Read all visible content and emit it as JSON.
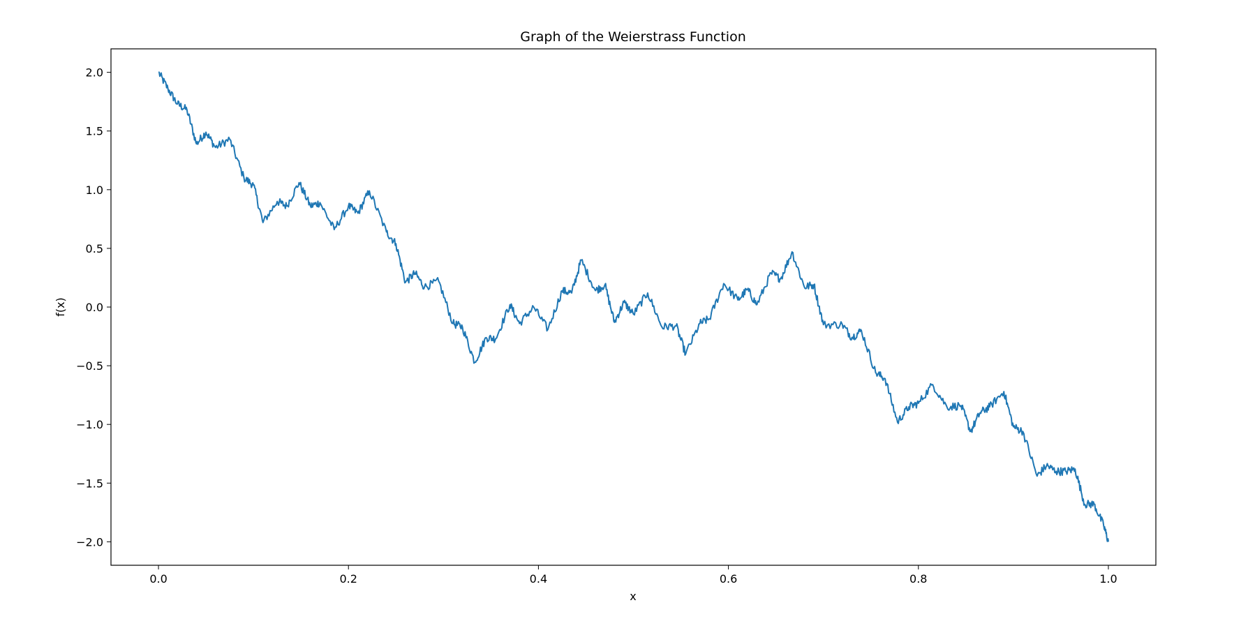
{
  "chart_data": {
    "type": "line",
    "title": "Graph of the Weierstrass Function",
    "xlabel": "x",
    "ylabel": "f(x)",
    "xlim": [
      -0.05,
      1.05
    ],
    "ylim": [
      -2.2,
      2.2
    ],
    "x_ticks": [
      0.0,
      0.2,
      0.4,
      0.6,
      0.8,
      1.0
    ],
    "x_tick_labels": [
      "0.0",
      "0.2",
      "0.4",
      "0.6",
      "0.8",
      "1.0"
    ],
    "y_ticks": [
      2.0,
      1.5,
      1.0,
      0.5,
      0.0,
      -0.5,
      -1.0,
      -1.5,
      -2.0
    ],
    "y_tick_labels": [
      "2.0",
      "1.5",
      "1.0",
      "0.5",
      "0.0",
      "−0.5",
      "−1.0",
      "−1.5",
      "−2.0"
    ],
    "grid": false,
    "legend": "none",
    "series": [
      {
        "color": "#1f77b4",
        "points": [
          [
            0.0,
            2.0
          ],
          [
            0.01,
            1.86
          ],
          [
            0.02,
            1.73
          ],
          [
            0.03,
            1.68
          ],
          [
            0.04,
            1.39
          ],
          [
            0.05,
            1.49
          ],
          [
            0.06,
            1.36
          ],
          [
            0.075,
            1.43
          ],
          [
            0.09,
            1.1
          ],
          [
            0.1,
            1.04
          ],
          [
            0.11,
            0.72
          ],
          [
            0.125,
            0.9
          ],
          [
            0.135,
            0.86
          ],
          [
            0.148,
            1.06
          ],
          [
            0.16,
            0.86
          ],
          [
            0.17,
            0.89
          ],
          [
            0.185,
            0.66
          ],
          [
            0.2,
            0.86
          ],
          [
            0.21,
            0.8
          ],
          [
            0.222,
            0.99
          ],
          [
            0.24,
            0.64
          ],
          [
            0.25,
            0.54
          ],
          [
            0.26,
            0.21
          ],
          [
            0.27,
            0.29
          ],
          [
            0.28,
            0.17
          ],
          [
            0.295,
            0.22
          ],
          [
            0.31,
            -0.14
          ],
          [
            0.32,
            -0.17
          ],
          [
            0.333,
            -0.47
          ],
          [
            0.345,
            -0.26
          ],
          [
            0.355,
            -0.27
          ],
          [
            0.37,
            0.02
          ],
          [
            0.38,
            -0.14
          ],
          [
            0.395,
            0.0
          ],
          [
            0.41,
            -0.19
          ],
          [
            0.425,
            0.14
          ],
          [
            0.435,
            0.12
          ],
          [
            0.445,
            0.4
          ],
          [
            0.46,
            0.14
          ],
          [
            0.47,
            0.19
          ],
          [
            0.48,
            -0.13
          ],
          [
            0.49,
            0.04
          ],
          [
            0.5,
            -0.06
          ],
          [
            0.515,
            0.12
          ],
          [
            0.53,
            -0.17
          ],
          [
            0.545,
            -0.16
          ],
          [
            0.555,
            -0.4
          ],
          [
            0.57,
            -0.14
          ],
          [
            0.58,
            -0.1
          ],
          [
            0.595,
            0.2
          ],
          [
            0.61,
            0.06
          ],
          [
            0.62,
            0.15
          ],
          [
            0.63,
            0.02
          ],
          [
            0.645,
            0.29
          ],
          [
            0.655,
            0.24
          ],
          [
            0.667,
            0.47
          ],
          [
            0.68,
            0.17
          ],
          [
            0.69,
            0.19
          ],
          [
            0.7,
            -0.15
          ],
          [
            0.72,
            -0.15
          ],
          [
            0.73,
            -0.26
          ],
          [
            0.74,
            -0.2
          ],
          [
            0.755,
            -0.56
          ],
          [
            0.765,
            -0.61
          ],
          [
            0.778,
            -0.98
          ],
          [
            0.79,
            -0.85
          ],
          [
            0.8,
            -0.82
          ],
          [
            0.815,
            -0.66
          ],
          [
            0.83,
            -0.85
          ],
          [
            0.845,
            -0.84
          ],
          [
            0.855,
            -1.06
          ],
          [
            0.865,
            -0.9
          ],
          [
            0.875,
            -0.85
          ],
          [
            0.89,
            -0.72
          ],
          [
            0.9,
            -1.02
          ],
          [
            0.91,
            -1.06
          ],
          [
            0.925,
            -1.44
          ],
          [
            0.935,
            -1.35
          ],
          [
            0.945,
            -1.4
          ],
          [
            0.955,
            -1.4
          ],
          [
            0.965,
            -1.38
          ],
          [
            0.975,
            -1.68
          ],
          [
            0.985,
            -1.68
          ],
          [
            0.995,
            -1.86
          ],
          [
            1.0,
            -2.0
          ]
        ]
      }
    ]
  }
}
